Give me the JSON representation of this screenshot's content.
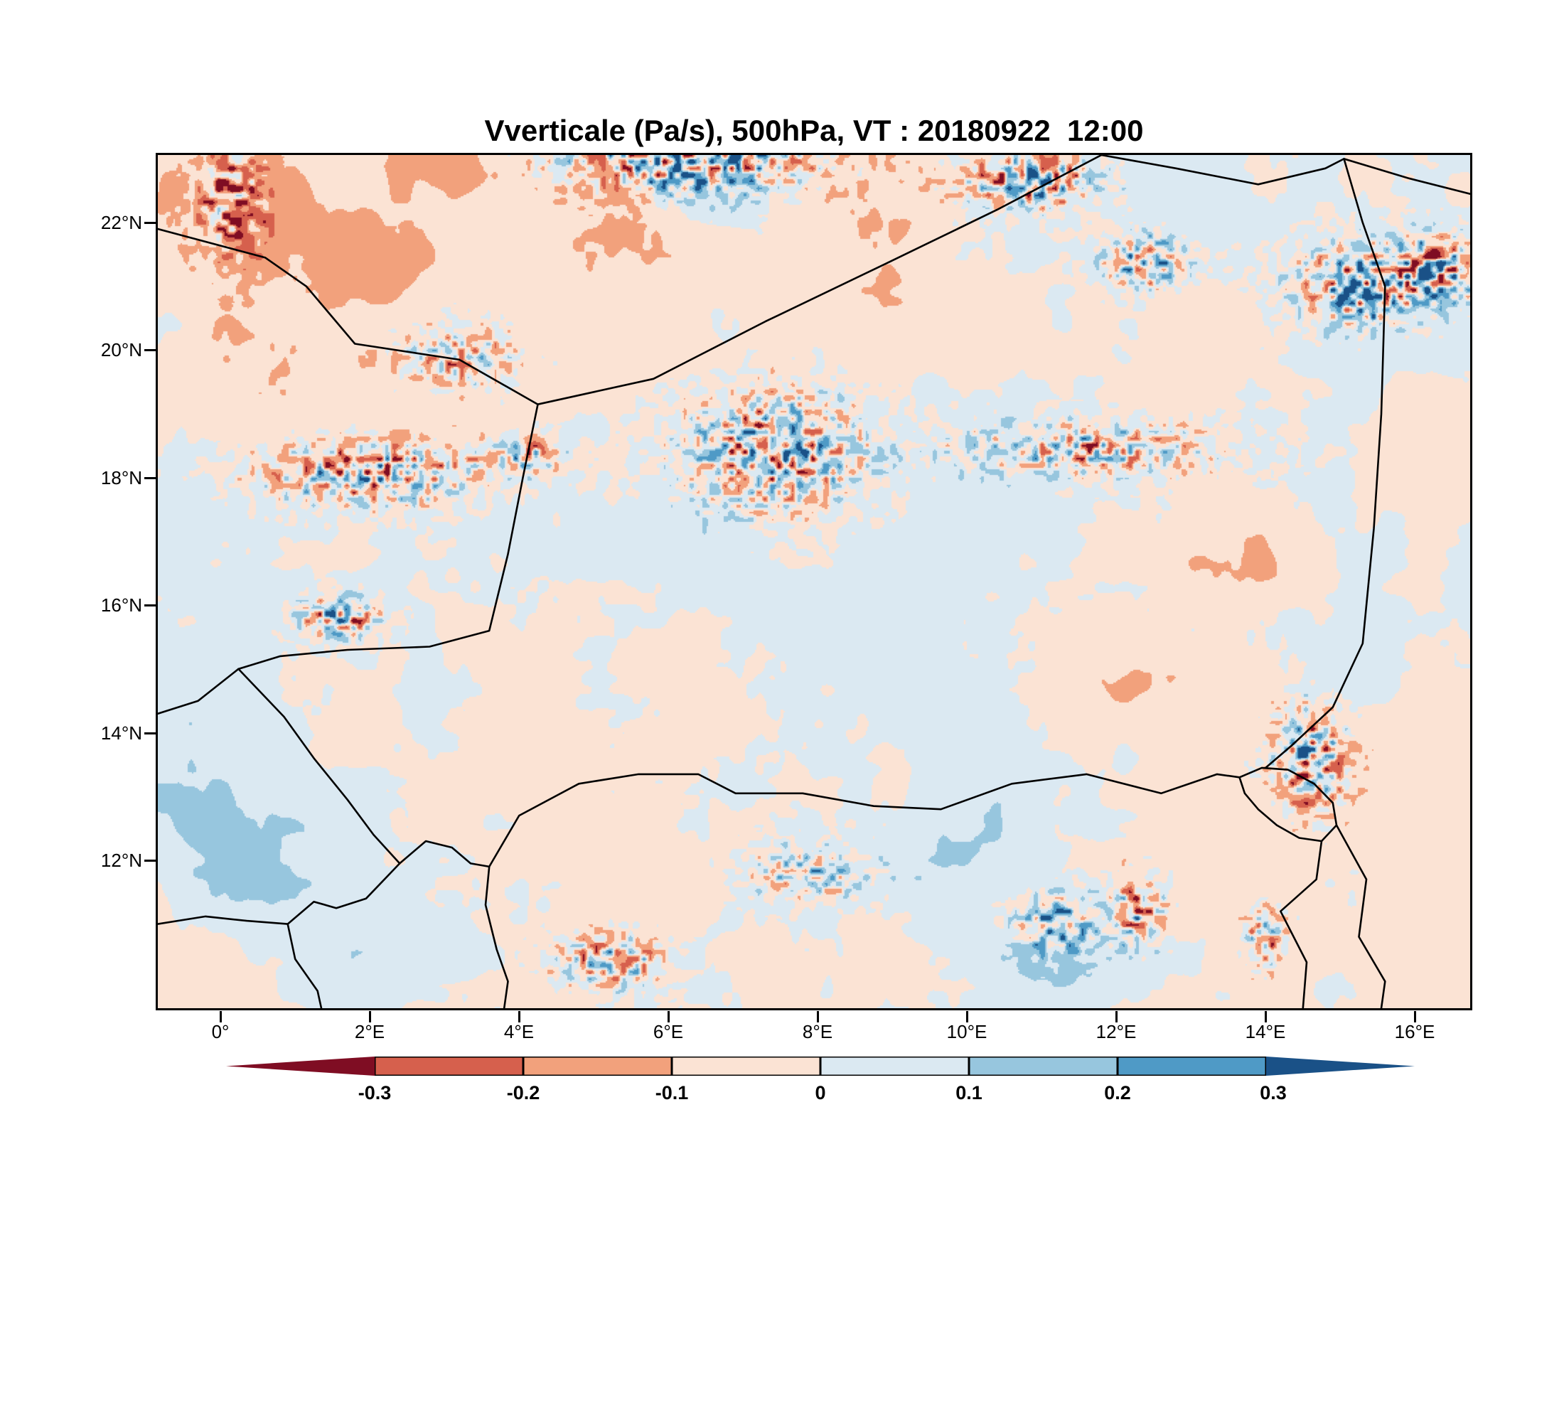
{
  "chart_data": {
    "type": "heatmap",
    "title": "Vverticale (Pa/s), 500hPa, VT : 20180922  12:00",
    "variable": "Vverticale",
    "units": "Pa/s",
    "pressure_level": "500hPa",
    "valid_time": "20180922 12:00",
    "xlabel": "",
    "ylabel": "",
    "grid": "off",
    "legend_position": "bottom",
    "lon_range": [
      -0.84,
      16.74
    ],
    "lat_range": [
      9.68,
      23.06
    ],
    "lon_ticks": [
      {
        "value": 0,
        "label": "0°"
      },
      {
        "value": 2,
        "label": "2°E"
      },
      {
        "value": 4,
        "label": "4°E"
      },
      {
        "value": 6,
        "label": "6°E"
      },
      {
        "value": 8,
        "label": "8°E"
      },
      {
        "value": 10,
        "label": "10°E"
      },
      {
        "value": 12,
        "label": "12°E"
      },
      {
        "value": 14,
        "label": "14°E"
      },
      {
        "value": 16,
        "label": "16°E"
      }
    ],
    "lat_ticks": [
      {
        "value": 22,
        "label": "22°N"
      },
      {
        "value": 20,
        "label": "20°N"
      },
      {
        "value": 18,
        "label": "18°N"
      },
      {
        "value": 16,
        "label": "16°N"
      },
      {
        "value": 14,
        "label": "14°N"
      },
      {
        "value": 12,
        "label": "12°N"
      }
    ],
    "colorbar": {
      "levels": [
        -0.3,
        -0.2,
        -0.1,
        0,
        0.1,
        0.2,
        0.3
      ],
      "labels": [
        "-0.3",
        "-0.2",
        "-0.1",
        "0",
        "0.1",
        "0.2",
        "0.3"
      ],
      "colors": [
        "#7f0d23",
        "#d6604d",
        "#f2a17c",
        "#fbe3d4",
        "#dbe9f2",
        "#97c6de",
        "#4f9ac6",
        "#1a5187"
      ]
    },
    "coarse_field": {
      "note": "approximate Pa/s values read from the map at 2-degree resolution",
      "lons": [
        0,
        2,
        4,
        6,
        8,
        10,
        12,
        14,
        16
      ],
      "lats": [
        23,
        21,
        19,
        17,
        15,
        13,
        11
      ],
      "values": [
        [
          -0.15,
          -0.1,
          -0.3,
          0.3,
          -0.05,
          -0.25,
          0.05,
          0.05,
          -0.1
        ],
        [
          -0.2,
          -0.15,
          -0.05,
          0.1,
          -0.05,
          0.05,
          -0.05,
          0.05,
          -0.25
        ],
        [
          -0.1,
          -0.05,
          0.05,
          -0.05,
          -0.05,
          0.05,
          -0.05,
          -0.05,
          0.05
        ],
        [
          -0.05,
          -0.15,
          0.05,
          0.08,
          -0.05,
          -0.08,
          -0.12,
          -0.05,
          0.05
        ],
        [
          -0.05,
          0.08,
          -0.05,
          0.05,
          0.05,
          -0.05,
          -0.1,
          0.05,
          -0.08
        ],
        [
          0.12,
          0.1,
          0.05,
          -0.05,
          0.05,
          0.05,
          -0.05,
          0.08,
          0.1
        ],
        [
          0.12,
          0.05,
          -0.08,
          0.05,
          -0.05,
          0.1,
          0.05,
          0.15,
          0.05
        ]
      ]
    },
    "features": [
      {
        "kind": "patch",
        "lon": 0.4,
        "lat": 22.3,
        "rx": 1.1,
        "ry": 1.0,
        "amp": -0.16
      },
      {
        "kind": "patch",
        "lon": 2.1,
        "lat": 21.4,
        "rx": 0.9,
        "ry": 0.7,
        "amp": -0.13
      },
      {
        "kind": "patch",
        "lon": 0.2,
        "lat": 19.9,
        "rx": 0.9,
        "ry": 1.3,
        "amp": -0.1
      },
      {
        "kind": "patch",
        "lon": 3.0,
        "lat": 22.9,
        "rx": 0.9,
        "ry": 0.6,
        "amp": -0.12
      },
      {
        "kind": "patch",
        "lon": 5.3,
        "lat": 21.9,
        "rx": 1.1,
        "ry": 0.8,
        "amp": -0.09
      },
      {
        "kind": "patch",
        "lon": 6.6,
        "lat": 22.4,
        "rx": 0.8,
        "ry": 0.5,
        "amp": 0.16
      },
      {
        "kind": "patch",
        "lon": 5.6,
        "lat": 23.0,
        "rx": 1.2,
        "ry": 0.5,
        "amp": 0.12
      },
      {
        "kind": "patch",
        "lon": 0.8,
        "lat": 11.9,
        "rx": 1.9,
        "ry": 1.1,
        "amp": 0.13
      },
      {
        "kind": "patch",
        "lon": 2.4,
        "lat": 10.5,
        "rx": 1.6,
        "ry": 0.9,
        "amp": 0.1
      },
      {
        "kind": "patch",
        "lon": -0.3,
        "lat": 12.9,
        "rx": 1.0,
        "ry": 0.8,
        "amp": 0.1
      },
      {
        "kind": "patch",
        "lon": 13.8,
        "lat": 16.5,
        "rx": 0.9,
        "ry": 0.7,
        "amp": -0.11
      },
      {
        "kind": "patch",
        "lon": 12.4,
        "lat": 14.8,
        "rx": 0.7,
        "ry": 0.5,
        "amp": -0.1
      },
      {
        "kind": "patch",
        "lon": 16.2,
        "lat": 18.5,
        "rx": 0.7,
        "ry": 1.4,
        "amp": -0.09
      },
      {
        "kind": "patch",
        "lon": 9.6,
        "lat": 12.1,
        "rx": 1.1,
        "ry": 0.7,
        "amp": 0.1
      },
      {
        "kind": "patch",
        "lon": 11.5,
        "lat": 10.7,
        "rx": 1.3,
        "ry": 0.7,
        "amp": 0.1
      },
      {
        "kind": "patch",
        "lon": 5.6,
        "lat": 17.2,
        "rx": 1.6,
        "ry": 1.3,
        "amp": 0.06
      },
      {
        "kind": "patch",
        "lon": 8.8,
        "lat": 20.7,
        "rx": 1.8,
        "ry": 1.2,
        "amp": -0.05
      },
      {
        "kind": "patch",
        "lon": 15.9,
        "lat": 13.9,
        "rx": 0.8,
        "ry": 1.0,
        "amp": -0.1
      },
      {
        "kind": "speckle",
        "lon": 6.3,
        "lat": 23.0,
        "rx": 1.7,
        "ry": 0.55,
        "amp": 0.55
      },
      {
        "kind": "speckle",
        "lon": 10.9,
        "lat": 22.65,
        "rx": 0.95,
        "ry": 0.45,
        "amp": 0.5
      },
      {
        "kind": "speckle",
        "lon": 12.4,
        "lat": 21.4,
        "rx": 0.6,
        "ry": 0.45,
        "amp": 0.45
      },
      {
        "kind": "speckle",
        "lon": 15.3,
        "lat": 21.0,
        "rx": 0.95,
        "ry": 0.65,
        "amp": 0.5
      },
      {
        "kind": "speckle",
        "lon": 7.4,
        "lat": 18.4,
        "rx": 1.2,
        "ry": 0.95,
        "amp": 0.5
      },
      {
        "kind": "speckle",
        "lon": 2.0,
        "lat": 18.05,
        "rx": 1.4,
        "ry": 0.5,
        "amp": 0.5
      },
      {
        "kind": "speckle",
        "lon": 4.1,
        "lat": 18.35,
        "rx": 0.5,
        "ry": 0.3,
        "amp": 0.4
      },
      {
        "kind": "speckle",
        "lon": 1.6,
        "lat": 15.8,
        "rx": 0.55,
        "ry": 0.35,
        "amp": 0.5
      },
      {
        "kind": "speckle",
        "lon": 3.2,
        "lat": 19.9,
        "rx": 0.8,
        "ry": 0.5,
        "amp": 0.35
      },
      {
        "kind": "speckle",
        "lon": 11.6,
        "lat": 18.45,
        "rx": 1.8,
        "ry": 0.45,
        "amp": 0.38
      },
      {
        "kind": "speckle",
        "lon": 14.6,
        "lat": 13.6,
        "rx": 0.5,
        "ry": 0.85,
        "amp": 0.5
      },
      {
        "kind": "speckle",
        "lon": 11.2,
        "lat": 11.0,
        "rx": 0.55,
        "ry": 0.5,
        "amp": 0.4
      },
      {
        "kind": "speckle",
        "lon": 5.2,
        "lat": 10.4,
        "rx": 0.75,
        "ry": 0.45,
        "amp": 0.4
      },
      {
        "kind": "speckle",
        "lon": 7.9,
        "lat": 11.8,
        "rx": 0.9,
        "ry": 0.45,
        "amp": 0.32
      },
      {
        "kind": "speckle",
        "lon": 16.3,
        "lat": 21.3,
        "rx": 0.5,
        "ry": 0.5,
        "amp": 0.5
      },
      {
        "kind": "speckle",
        "lon": 0.15,
        "lat": 22.3,
        "rx": 0.45,
        "ry": 0.9,
        "amp": 0.4
      },
      {
        "kind": "speckle",
        "lon": 12.3,
        "lat": 11.2,
        "rx": 0.35,
        "ry": 0.6,
        "amp": 0.45
      },
      {
        "kind": "speckle",
        "lon": 14.0,
        "lat": 10.8,
        "rx": 0.3,
        "ry": 0.5,
        "amp": 0.4
      }
    ],
    "borders": {
      "mali_algeria": [
        [
          -0.84,
          21.9
        ],
        [
          0.6,
          21.45
        ],
        [
          1.15,
          21.0
        ],
        [
          1.8,
          20.1
        ],
        [
          3.2,
          19.85
        ],
        [
          4.25,
          19.15
        ]
      ],
      "algeria_niger": [
        [
          4.25,
          19.15
        ],
        [
          5.8,
          19.55
        ],
        [
          7.3,
          20.45
        ],
        [
          8.9,
          21.35
        ],
        [
          10.4,
          22.2
        ],
        [
          11.8,
          23.06
        ]
      ],
      "niger_libya": [
        [
          11.8,
          23.06
        ],
        [
          12.8,
          22.85
        ],
        [
          13.9,
          22.6
        ],
        [
          14.8,
          22.85
        ],
        [
          15.05,
          23.0
        ]
      ],
      "libya_chad": [
        [
          15.05,
          23.0
        ],
        [
          15.9,
          22.7
        ],
        [
          16.74,
          22.45
        ]
      ],
      "niger_chad": [
        [
          15.05,
          23.0
        ],
        [
          15.3,
          22.0
        ],
        [
          15.6,
          21.0
        ],
        [
          15.55,
          19.0
        ],
        [
          15.45,
          17.2
        ],
        [
          15.3,
          15.4
        ],
        [
          14.9,
          14.4
        ],
        [
          14.35,
          13.8
        ],
        [
          14.0,
          13.45
        ]
      ],
      "mali_niger": [
        [
          4.25,
          19.15
        ],
        [
          4.05,
          18.0
        ],
        [
          3.85,
          16.8
        ],
        [
          3.6,
          15.6
        ],
        [
          2.8,
          15.35
        ],
        [
          1.7,
          15.3
        ],
        [
          0.8,
          15.2
        ],
        [
          0.24,
          15.0
        ]
      ],
      "mali_burkina": [
        [
          0.24,
          15.0
        ],
        [
          -0.3,
          14.5
        ],
        [
          -0.84,
          14.3
        ]
      ],
      "burkina_niger": [
        [
          0.24,
          15.0
        ],
        [
          0.85,
          14.25
        ],
        [
          1.25,
          13.6
        ],
        [
          1.7,
          12.95
        ],
        [
          2.05,
          12.4
        ],
        [
          2.4,
          11.95
        ]
      ],
      "benin_niger": [
        [
          2.4,
          11.95
        ],
        [
          2.75,
          12.3
        ],
        [
          3.1,
          12.2
        ],
        [
          3.35,
          11.95
        ],
        [
          3.6,
          11.9
        ]
      ],
      "niger_nigeria": [
        [
          3.6,
          11.9
        ],
        [
          4.0,
          12.7
        ],
        [
          4.8,
          13.2
        ],
        [
          5.6,
          13.35
        ],
        [
          6.4,
          13.35
        ],
        [
          6.9,
          13.05
        ],
        [
          7.8,
          13.05
        ],
        [
          8.75,
          12.85
        ],
        [
          9.65,
          12.8
        ],
        [
          10.6,
          13.2
        ],
        [
          11.6,
          13.35
        ],
        [
          12.6,
          13.05
        ],
        [
          13.35,
          13.35
        ],
        [
          13.65,
          13.3
        ]
      ],
      "benin_nigeria": [
        [
          3.6,
          11.9
        ],
        [
          3.55,
          11.3
        ],
        [
          3.7,
          10.6
        ],
        [
          3.85,
          10.1
        ],
        [
          3.8,
          9.68
        ]
      ],
      "burkina_benin": [
        [
          2.4,
          11.95
        ],
        [
          1.95,
          11.4
        ],
        [
          1.55,
          11.25
        ],
        [
          1.25,
          11.35
        ],
        [
          0.9,
          11.0
        ]
      ],
      "burkina_ghana_togo": [
        [
          -0.84,
          11.0
        ],
        [
          -0.2,
          11.12
        ],
        [
          0.35,
          11.05
        ],
        [
          0.9,
          11.0
        ]
      ],
      "togo_benin_south": [
        [
          0.9,
          11.0
        ],
        [
          1.0,
          10.45
        ],
        [
          1.3,
          9.95
        ],
        [
          1.35,
          9.68
        ]
      ],
      "lake_chad": [
        [
          13.65,
          13.3
        ],
        [
          13.95,
          13.45
        ],
        [
          14.3,
          13.42
        ],
        [
          14.65,
          13.2
        ],
        [
          14.9,
          12.9
        ],
        [
          14.95,
          12.55
        ],
        [
          14.75,
          12.3
        ],
        [
          14.45,
          12.35
        ],
        [
          14.15,
          12.55
        ],
        [
          13.9,
          12.8
        ],
        [
          13.72,
          13.05
        ],
        [
          13.65,
          13.3
        ]
      ],
      "nigeria_cameroon": [
        [
          14.75,
          12.3
        ],
        [
          14.68,
          11.7
        ],
        [
          14.2,
          11.2
        ],
        [
          14.55,
          10.4
        ],
        [
          14.5,
          9.68
        ]
      ],
      "chad_cameroon": [
        [
          14.95,
          12.55
        ],
        [
          15.35,
          11.7
        ],
        [
          15.25,
          10.8
        ],
        [
          15.6,
          10.1
        ],
        [
          15.55,
          9.68
        ]
      ]
    }
  }
}
